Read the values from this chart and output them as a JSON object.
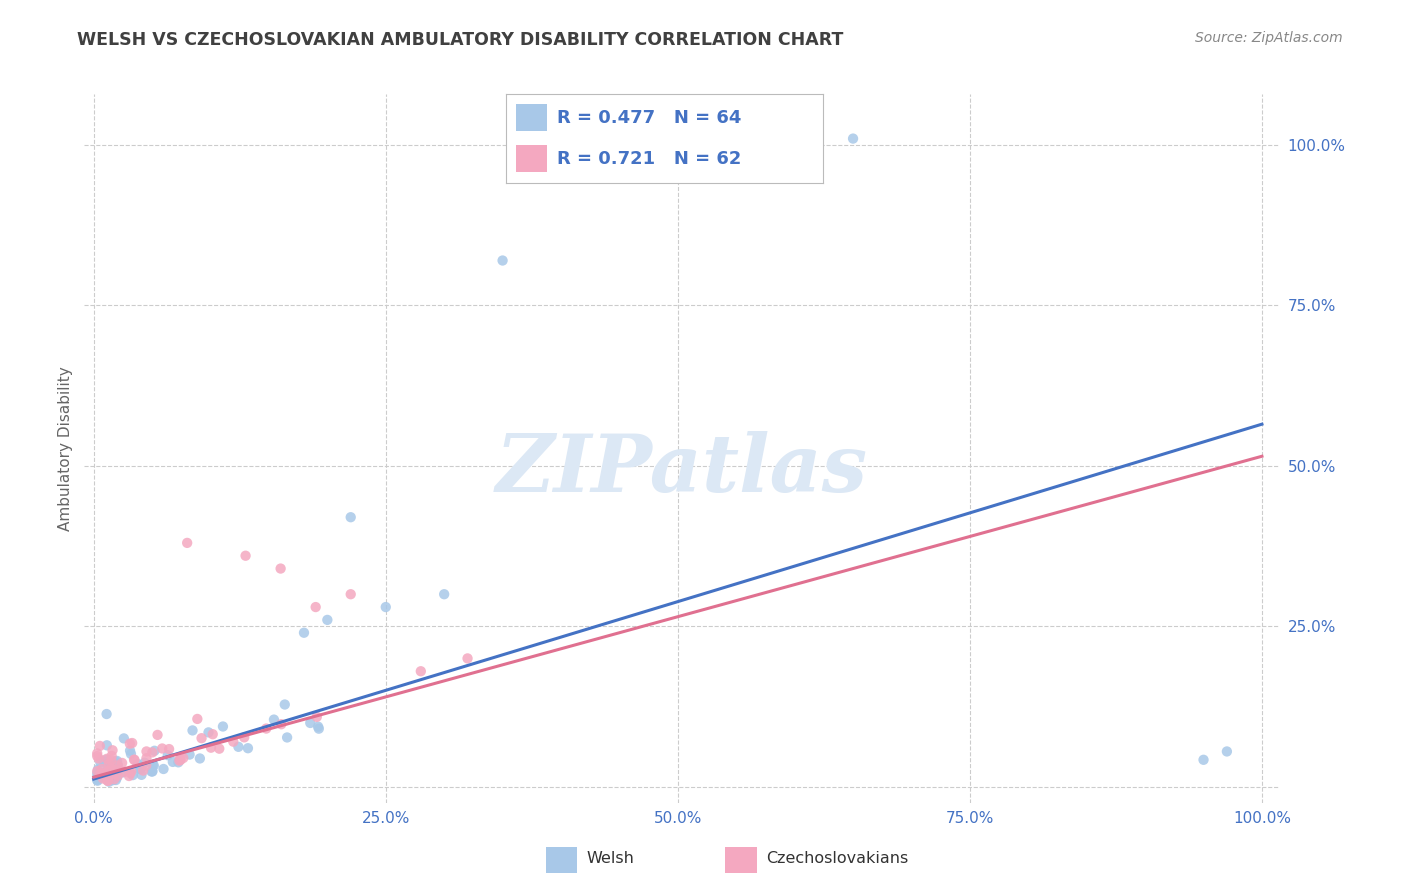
{
  "title": "WELSH VS CZECHOSLOVAKIAN AMBULATORY DISABILITY CORRELATION CHART",
  "source": "Source: ZipAtlas.com",
  "ylabel": "Ambulatory Disability",
  "welsh_R": "0.477",
  "welsh_N": "64",
  "czech_R": "0.721",
  "czech_N": "62",
  "welsh_color": "#a8c8e8",
  "czech_color": "#f4a8c0",
  "welsh_line_color": "#4472c4",
  "czech_line_color": "#e07090",
  "title_color": "#404040",
  "axis_color": "#4472c4",
  "background_color": "#ffffff",
  "grid_color": "#cccccc",
  "watermark_color": "#dce8f5",
  "source_color": "#888888",
  "ylabel_color": "#666666"
}
